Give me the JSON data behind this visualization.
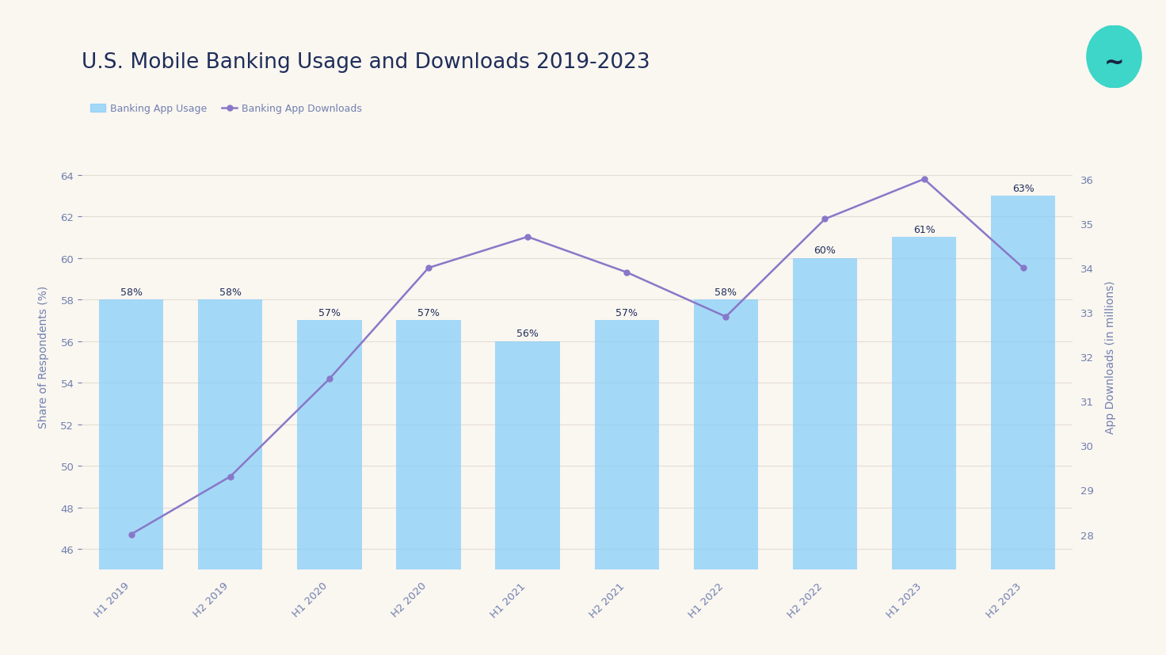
{
  "title": "U.S. Mobile Banking Usage and Downloads 2019-2023",
  "background_color": "#faf6f0",
  "categories": [
    "H1 2019",
    "H2 2019",
    "H1 2020",
    "H2 2020",
    "H1 2021",
    "H2 2021",
    "H1 2022",
    "H2 2022",
    "H1 2023",
    "H2 2023"
  ],
  "bar_values": [
    58,
    58,
    57,
    57,
    56,
    57,
    58,
    60,
    61,
    63
  ],
  "bar_color": "#87CEFA",
  "bar_labels": [
    "58%",
    "58%",
    "57%",
    "57%",
    "56%",
    "57%",
    "58%",
    "60%",
    "61%",
    "63%"
  ],
  "line_values": [
    28.0,
    29.3,
    31.5,
    34.0,
    34.7,
    33.9,
    32.9,
    35.1,
    36.0,
    34.0
  ],
  "line_color": "#8878C8",
  "left_ylabel": "Share of Respondents (%)",
  "right_ylabel": "App Downloads (in millions)",
  "left_ylim": [
    45,
    65.5
  ],
  "left_yticks": [
    46,
    48,
    50,
    52,
    54,
    56,
    58,
    60,
    62,
    64
  ],
  "right_ylim": [
    27.2,
    36.8
  ],
  "right_yticks": [
    28,
    29,
    30,
    31,
    32,
    33,
    34,
    35,
    36
  ],
  "legend_bar_label": "Banking App Usage",
  "legend_line_label": "Banking App Downloads",
  "title_color": "#1e2d5a",
  "axis_label_color": "#7080b0",
  "tick_color": "#7080b0",
  "grid_color": "#e5ddd5",
  "title_fontsize": 19,
  "axis_fontsize": 10,
  "tick_fontsize": 9.5,
  "bar_label_fontsize": 9
}
